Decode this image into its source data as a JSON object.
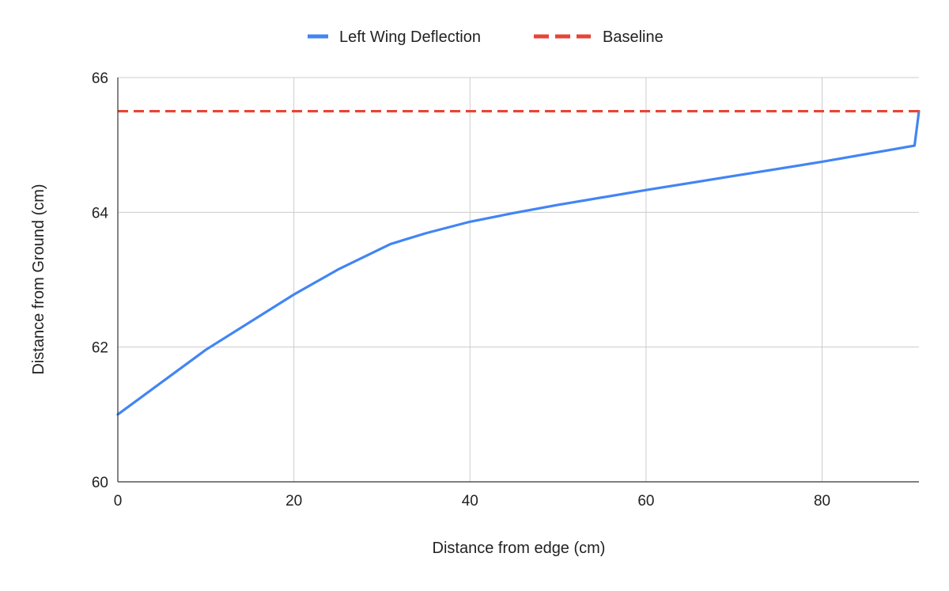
{
  "chart_data": {
    "type": "line",
    "title": "",
    "xlabel": "Distance from edge (cm)",
    "ylabel": "Distance from Ground (cm)",
    "xlim": [
      0,
      91
    ],
    "ylim": [
      60,
      66
    ],
    "x_ticks": [
      0,
      20,
      40,
      60,
      80
    ],
    "y_ticks": [
      60,
      62,
      64,
      66
    ],
    "grid": true,
    "legend_position": "top",
    "series": [
      {
        "name": "Left Wing Deflection",
        "color": "#4285f4",
        "style": "solid",
        "x": [
          0,
          10,
          20,
          25,
          31,
          35,
          40,
          45,
          50,
          60,
          70,
          80,
          90.5,
          91
        ],
        "y": [
          61.0,
          61.96,
          62.78,
          63.15,
          63.53,
          63.69,
          63.86,
          63.99,
          64.11,
          64.33,
          64.54,
          64.75,
          64.99,
          65.5
        ]
      },
      {
        "name": "Baseline",
        "color": "#ea4335",
        "style": "dashed",
        "x": [
          0,
          91
        ],
        "y": [
          65.5,
          65.5
        ]
      }
    ]
  }
}
